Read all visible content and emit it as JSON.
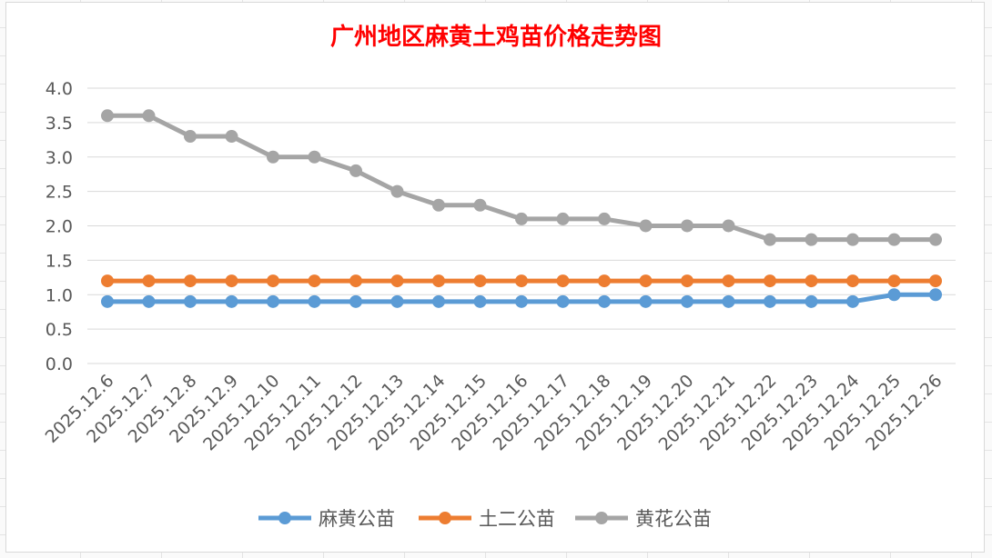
{
  "chart_data": {
    "type": "line",
    "title": "广州地区麻黄土鸡苗价格走势图",
    "xlabel": "",
    "ylabel": "",
    "categories": [
      "2025.12.6",
      "2025.12.7",
      "2025.12.8",
      "2025.12.9",
      "2025.12.10",
      "2025.12.11",
      "2025.12.12",
      "2025.12.13",
      "2025.12.14",
      "2025.12.15",
      "2025.12.16",
      "2025.12.17",
      "2025.12.18",
      "2025.12.19",
      "2025.12.20",
      "2025.12.21",
      "2025.12.22",
      "2025.12.23",
      "2025.12.24",
      "2025.12.25",
      "2025.12.26"
    ],
    "ylim": [
      0,
      4.0
    ],
    "yticks": [
      "0.0",
      "0.5",
      "1.0",
      "1.5",
      "2.0",
      "2.5",
      "3.0",
      "3.5",
      "4.0"
    ],
    "grid": true,
    "legend_position": "bottom",
    "series": [
      {
        "name": "麻黄公苗",
        "color": "#5b9bd5",
        "values": [
          0.9,
          0.9,
          0.9,
          0.9,
          0.9,
          0.9,
          0.9,
          0.9,
          0.9,
          0.9,
          0.9,
          0.9,
          0.9,
          0.9,
          0.9,
          0.9,
          0.9,
          0.9,
          0.9,
          1.0,
          1.0
        ]
      },
      {
        "name": "土二公苗",
        "color": "#ed7d31",
        "values": [
          1.2,
          1.2,
          1.2,
          1.2,
          1.2,
          1.2,
          1.2,
          1.2,
          1.2,
          1.2,
          1.2,
          1.2,
          1.2,
          1.2,
          1.2,
          1.2,
          1.2,
          1.2,
          1.2,
          1.2,
          1.2
        ]
      },
      {
        "name": "黄花公苗",
        "color": "#a5a5a5",
        "values": [
          3.6,
          3.6,
          3.3,
          3.3,
          3.0,
          3.0,
          2.8,
          2.5,
          2.3,
          2.3,
          2.1,
          2.1,
          2.1,
          2.0,
          2.0,
          2.0,
          1.8,
          1.8,
          1.8,
          1.8,
          1.8
        ]
      }
    ]
  }
}
